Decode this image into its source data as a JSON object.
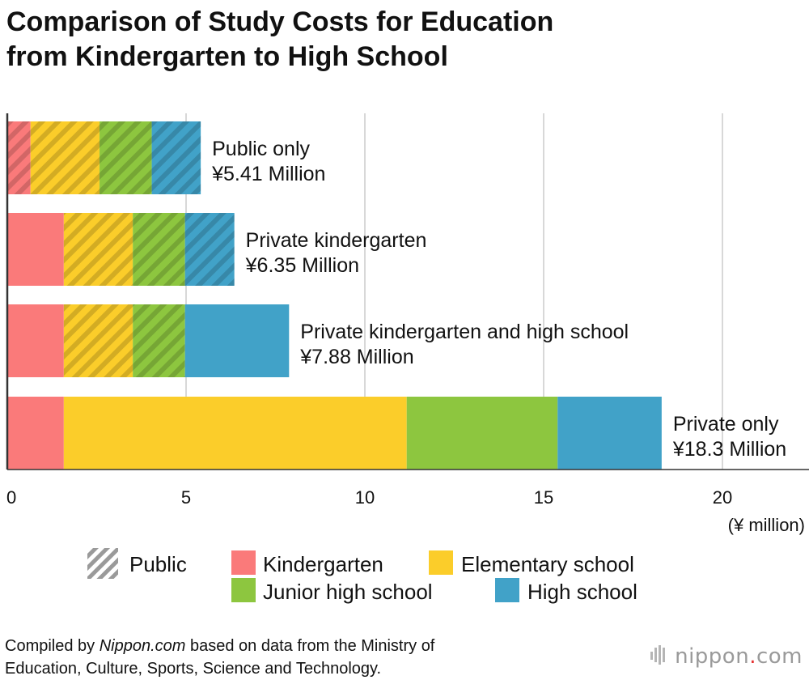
{
  "title": {
    "line1": "Comparison of Study Costs for Education",
    "line2": "from Kindergarten to High School"
  },
  "colors": {
    "kindergarten": "#fa7a7a",
    "elementary": "#fbcd2a",
    "junior_high": "#8dc63f",
    "high_school": "#41a2c8",
    "grid": "#cccccc",
    "axis": "#333333",
    "public_legend": "#9a9a9a",
    "brand_dot": "#e63232"
  },
  "chart_data": {
    "type": "bar",
    "orientation": "horizontal",
    "stacked": true,
    "categories": [
      "Public only",
      "Private kindergarten",
      "Private kindergarten and high school",
      "Private only"
    ],
    "category_value_labels": [
      "¥5.41 Million",
      "¥6.35 Million",
      "¥7.88 Million",
      "¥18.3 Million"
    ],
    "series": [
      {
        "name": "Kindergarten",
        "key": "kindergarten",
        "values": [
          0.65,
          1.58,
          1.58,
          1.58
        ],
        "public": [
          true,
          false,
          false,
          false
        ]
      },
      {
        "name": "Elementary school",
        "key": "elementary",
        "values": [
          1.93,
          1.93,
          1.93,
          9.59
        ],
        "public": [
          true,
          true,
          true,
          false
        ]
      },
      {
        "name": "Junior high school",
        "key": "junior_high",
        "values": [
          1.46,
          1.46,
          1.46,
          4.22
        ],
        "public": [
          true,
          true,
          true,
          false
        ]
      },
      {
        "name": "High school",
        "key": "high_school",
        "values": [
          1.37,
          1.38,
          2.91,
          2.91
        ],
        "public": [
          true,
          true,
          false,
          false
        ]
      }
    ],
    "xlim": [
      0,
      22
    ],
    "xticks": [
      0,
      5,
      10,
      15,
      20
    ],
    "tick_labels": [
      "0",
      "5",
      "10",
      "15",
      "20"
    ],
    "unit_label": "(¥ million)",
    "grid": true,
    "legend": {
      "public_label": "Public",
      "items": [
        "Kindergarten",
        "Elementary school",
        "Junior high school",
        "High school"
      ],
      "placement": "bottom"
    }
  },
  "footer": {
    "prefix": "Compiled by ",
    "source_italic": "Nippon.com",
    "suffix": " based on data from the Ministry of",
    "line2": "Education, Culture, Sports, Science and Technology."
  },
  "brand": {
    "pre": "nippon",
    "dot": ".",
    "post": "com"
  }
}
